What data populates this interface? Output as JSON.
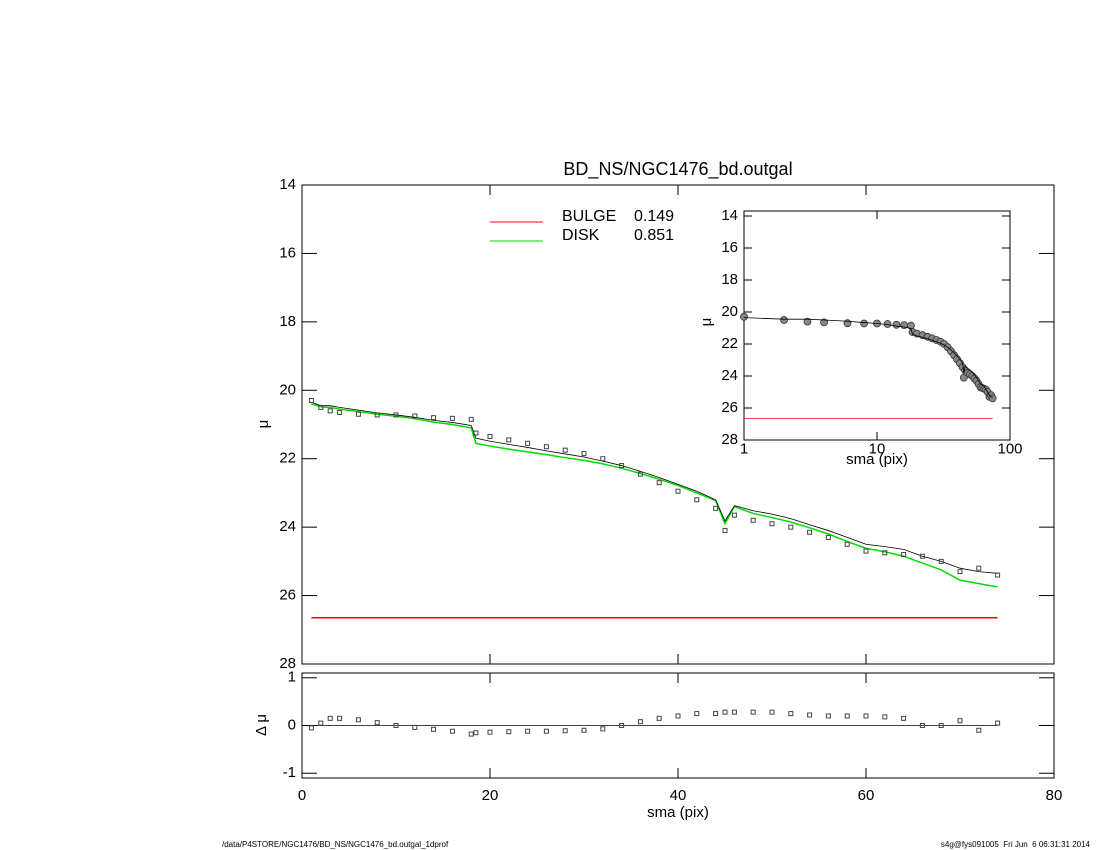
{
  "chart_data": {
    "type": "profile",
    "title": "BD_NS/NGC1476_bd.outgal",
    "xlabel": "sma (pix)",
    "ylabel": "μ",
    "residual_ylabel": "Δ μ",
    "x": [
      1,
      2,
      3,
      4,
      6,
      8,
      10,
      12,
      14,
      16,
      18,
      18.5,
      20,
      22,
      24,
      26,
      28,
      30,
      32,
      34,
      36,
      38,
      40,
      42,
      44,
      45,
      46,
      48,
      50,
      52,
      54,
      56,
      58,
      60,
      62,
      64,
      66,
      68,
      70,
      72,
      74
    ],
    "data": {
      "color": "#444444",
      "values": [
        20.3,
        20.5,
        20.6,
        20.65,
        20.7,
        20.72,
        20.72,
        20.75,
        20.8,
        20.82,
        20.85,
        21.25,
        21.35,
        21.45,
        21.55,
        21.65,
        21.75,
        21.85,
        22.0,
        22.2,
        22.45,
        22.7,
        22.95,
        23.2,
        23.45,
        24.1,
        23.65,
        23.8,
        23.9,
        24.0,
        24.15,
        24.3,
        24.5,
        24.7,
        24.75,
        24.8,
        24.85,
        25.0,
        25.3,
        25.2,
        25.4
      ]
    },
    "model": {
      "color": "#000000",
      "values": [
        20.35,
        20.45,
        20.45,
        20.5,
        20.58,
        20.66,
        20.72,
        20.79,
        20.88,
        20.94,
        21.03,
        21.4,
        21.49,
        21.58,
        21.67,
        21.77,
        21.86,
        21.95,
        22.07,
        22.2,
        22.37,
        22.55,
        22.75,
        22.95,
        23.2,
        23.82,
        23.37,
        23.52,
        23.62,
        23.75,
        23.93,
        24.1,
        24.3,
        24.5,
        24.57,
        24.65,
        24.85,
        25.0,
        25.2,
        25.3,
        25.35
      ]
    },
    "series": [
      {
        "name": "BULGE",
        "fraction": 0.149,
        "color": "#ff0000",
        "x": [
          1,
          74
        ],
        "values": [
          26.65,
          26.65
        ]
      },
      {
        "name": "DISK",
        "fraction": 0.851,
        "color": "#00dd00",
        "values": [
          20.4,
          20.48,
          20.5,
          20.55,
          20.62,
          20.7,
          20.76,
          20.83,
          20.93,
          21.0,
          21.1,
          21.55,
          21.63,
          21.72,
          21.8,
          21.88,
          21.97,
          22.05,
          22.15,
          22.28,
          22.43,
          22.6,
          22.78,
          23.0,
          23.22,
          23.9,
          23.4,
          23.6,
          23.72,
          23.85,
          24.02,
          24.2,
          24.42,
          24.62,
          24.72,
          24.85,
          25.05,
          25.25,
          25.55,
          25.65,
          25.75
        ]
      }
    ],
    "residual": [
      -0.05,
      0.05,
      0.15,
      0.15,
      0.12,
      0.06,
      0.0,
      -0.04,
      -0.08,
      -0.12,
      -0.18,
      -0.15,
      -0.14,
      -0.13,
      -0.12,
      -0.12,
      -0.11,
      -0.1,
      -0.07,
      0.0,
      0.08,
      0.15,
      0.2,
      0.25,
      0.25,
      0.28,
      0.28,
      0.28,
      0.28,
      0.25,
      0.22,
      0.2,
      0.2,
      0.2,
      0.18,
      0.15,
      0.0,
      0.0,
      0.1,
      -0.1,
      0.05
    ],
    "xlim": [
      0,
      80
    ],
    "xticks": [
      0,
      20,
      40,
      60,
      80
    ],
    "ylim": [
      14,
      28
    ],
    "yticks": [
      14,
      16,
      18,
      20,
      22,
      24,
      26,
      28
    ],
    "residual_ylim": [
      -1.1,
      1.1
    ],
    "residual_yticks": [
      -1,
      0,
      1
    ],
    "inset": {
      "xlabel": "sma (pix)",
      "ylabel": "μ",
      "log_x": true,
      "xlim": [
        1,
        100
      ],
      "xticks": [
        1,
        10,
        100
      ],
      "ylim": [
        14,
        28
      ],
      "yticks": [
        14,
        16,
        18,
        20,
        22,
        24,
        26,
        28
      ]
    },
    "footer_left": "/data/P4STORE/NGC1476/BD_NS/NGC1476_bd.outgal_1dprof",
    "footer_right": "s4g@fys091005  Fri Jun  6 06:31:31 2014"
  }
}
